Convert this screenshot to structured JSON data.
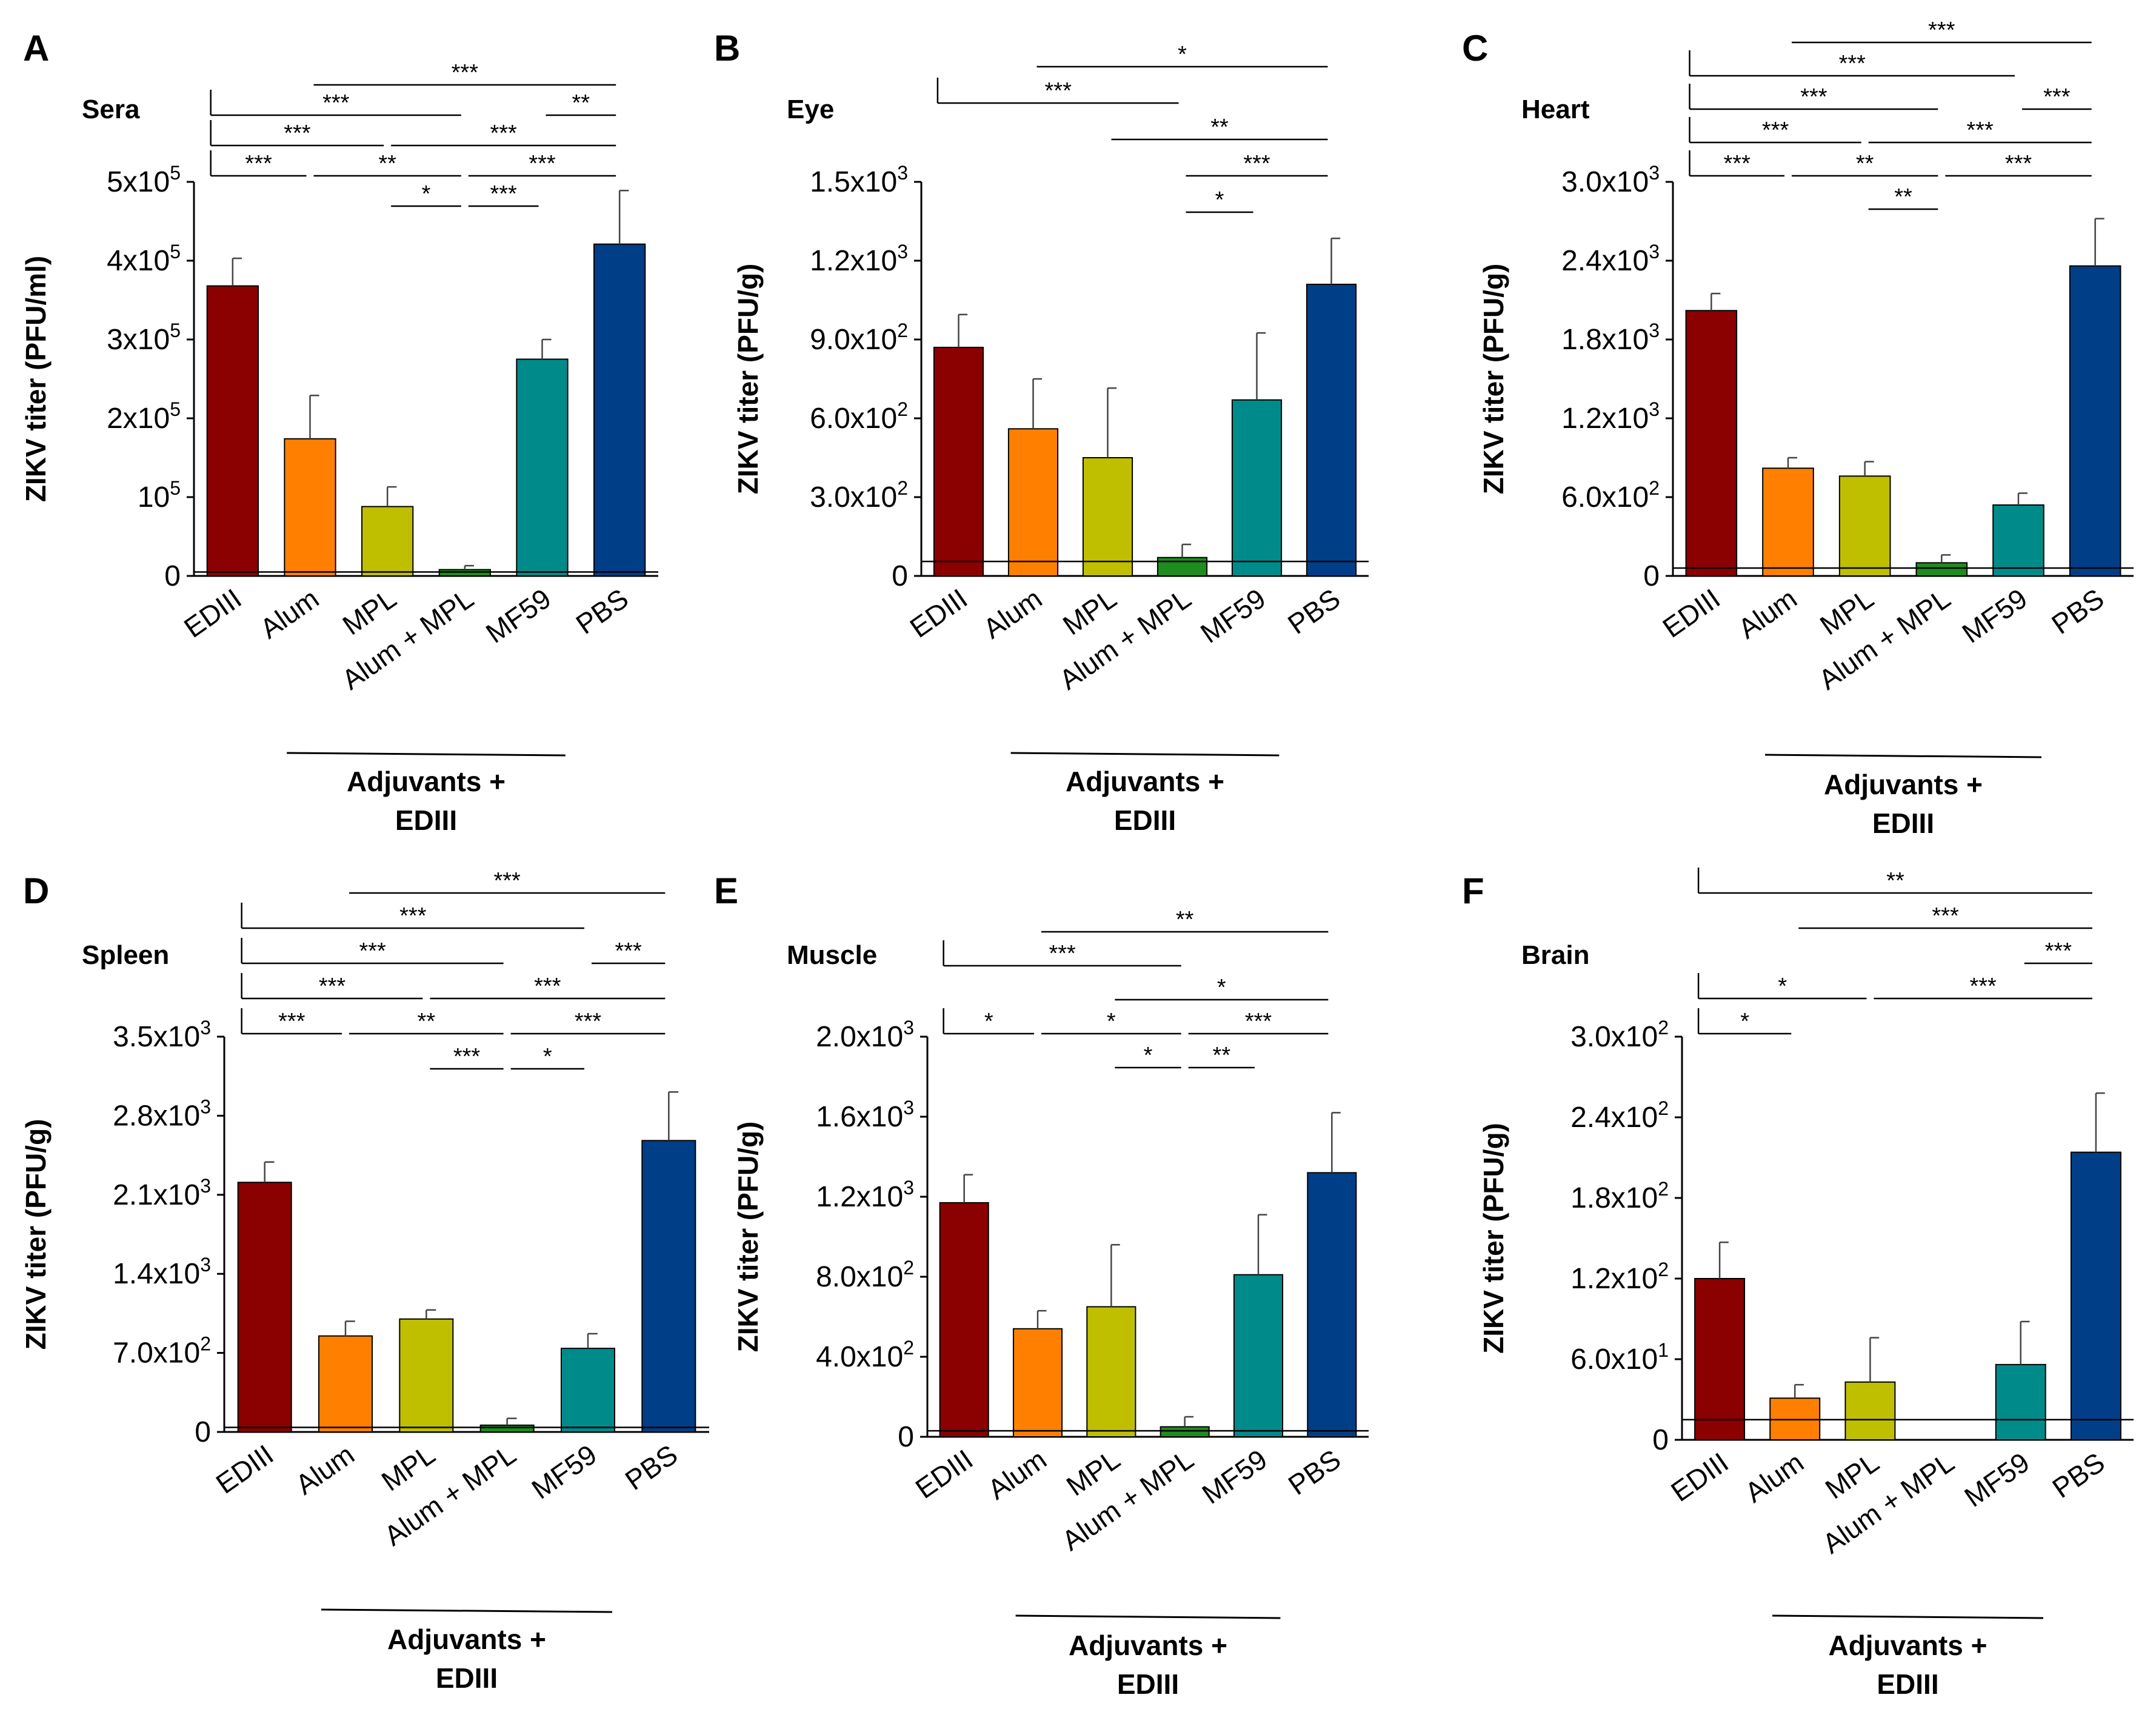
{
  "chart_data": [
    {
      "type": "bar",
      "panel": "A",
      "title": "Sera",
      "ylabel": "ZIKV titer (PFU/ml)",
      "categories": [
        "EDIII",
        "Alum",
        "MPL",
        "Alum + MPL",
        "MF59",
        "PBS"
      ],
      "values": [
        368000,
        174000,
        88000,
        8000,
        275000,
        421000
      ],
      "errors": [
        35000,
        55000,
        25000,
        5000,
        25000,
        68000
      ],
      "colors": [
        "#8B0000",
        "#FF8000",
        "#BFBF00",
        "#1E8C1E",
        "#008B8B",
        "#003F87"
      ],
      "yticks": [
        0,
        100000,
        200000,
        300000,
        400000,
        500000
      ],
      "ytick_labels": [
        {
          "m": "0"
        },
        {
          "m": "10",
          "e": "5"
        },
        {
          "m": "2x10",
          "e": "5"
        },
        {
          "m": "3x10",
          "e": "5"
        },
        {
          "m": "4x10",
          "e": "5"
        },
        {
          "m": "5x10",
          "e": "5"
        }
      ],
      "ylim": [
        0,
        500000
      ],
      "detection_limit": 5000,
      "xlabel_group": [
        "Adjuvants +",
        "EDIII"
      ],
      "group_categories": [
        1,
        4
      ],
      "significance": [
        {
          "from": 0,
          "to": 1,
          "level": 0,
          "label": "***"
        },
        {
          "from": 1,
          "to": 3,
          "level": 0,
          "label": "**"
        },
        {
          "from": 3,
          "to": 5,
          "level": 0,
          "label": "***"
        },
        {
          "from": 0,
          "to": 2,
          "level": 1,
          "label": "***"
        },
        {
          "from": 2,
          "to": 5,
          "level": 1,
          "label": "***"
        },
        {
          "from": 0,
          "to": 3,
          "level": 2,
          "label": "***"
        },
        {
          "from": 4,
          "to": 5,
          "level": 2,
          "label": "**"
        },
        {
          "from": 1,
          "to": 5,
          "level": 3,
          "label": "***"
        },
        {
          "from": 2,
          "to": 3,
          "level": -1,
          "label": "*"
        },
        {
          "from": 3,
          "to": 4,
          "level": -1,
          "label": "***"
        }
      ]
    },
    {
      "type": "bar",
      "panel": "B",
      "title": "Eye",
      "ylabel": "ZIKV titer (PFU/g)",
      "categories": [
        "EDIII",
        "Alum",
        "MPL",
        "Alum + MPL",
        "MF59",
        "PBS"
      ],
      "values": [
        870,
        560,
        450,
        70,
        670,
        1110
      ],
      "errors": [
        125,
        190,
        265,
        50,
        255,
        175
      ],
      "colors": [
        "#8B0000",
        "#FF8000",
        "#BFBF00",
        "#1E8C1E",
        "#008B8B",
        "#003F87"
      ],
      "yticks": [
        0,
        300,
        600,
        900,
        1200,
        1500
      ],
      "ytick_labels": [
        {
          "m": "0"
        },
        {
          "m": "3.0x10",
          "e": "2"
        },
        {
          "m": "6.0x10",
          "e": "2"
        },
        {
          "m": "9.0x10",
          "e": "2"
        },
        {
          "m": "1.2x10",
          "e": "3"
        },
        {
          "m": "1.5x10",
          "e": "3"
        }
      ],
      "ylim": [
        0,
        1500
      ],
      "detection_limit": 55,
      "xlabel_group": [
        "Adjuvants +",
        "EDIII"
      ],
      "group_categories": [
        1,
        4
      ],
      "significance": [
        {
          "from": 3,
          "to": 4,
          "level": -1,
          "label": "*"
        },
        {
          "from": 3,
          "to": 5,
          "level": 0,
          "label": "***"
        },
        {
          "from": 2,
          "to": 5,
          "level": 1,
          "label": "**"
        },
        {
          "from": 0,
          "to": 3,
          "level": 2,
          "label": "***"
        },
        {
          "from": 1,
          "to": 5,
          "level": 3,
          "label": "*"
        }
      ]
    },
    {
      "type": "bar",
      "panel": "C",
      "title": "Heart",
      "ylabel": "ZIKV titer (PFU/g)",
      "categories": [
        "EDIII",
        "Alum",
        "MPL",
        "Alum + MPL",
        "MF59",
        "PBS"
      ],
      "values": [
        2020,
        820,
        760,
        100,
        540,
        2360
      ],
      "errors": [
        130,
        80,
        110,
        60,
        90,
        360
      ],
      "colors": [
        "#8B0000",
        "#FF8000",
        "#BFBF00",
        "#1E8C1E",
        "#008B8B",
        "#003F87"
      ],
      "yticks": [
        0,
        600,
        1200,
        1800,
        2400,
        3000
      ],
      "ytick_labels": [
        {
          "m": "0"
        },
        {
          "m": "6.0x10",
          "e": "2"
        },
        {
          "m": "1.2x10",
          "e": "3"
        },
        {
          "m": "1.8x10",
          "e": "3"
        },
        {
          "m": "2.4x10",
          "e": "3"
        },
        {
          "m": "3.0x10",
          "e": "3"
        }
      ],
      "ylim": [
        0,
        3000
      ],
      "detection_limit": 60,
      "xlabel_group": [
        "Adjuvants +",
        "EDIII"
      ],
      "group_categories": [
        1,
        4
      ],
      "significance": [
        {
          "from": 2,
          "to": 3,
          "level": -1,
          "label": "**"
        },
        {
          "from": 0,
          "to": 1,
          "level": 0,
          "label": "***"
        },
        {
          "from": 1,
          "to": 3,
          "level": 0,
          "label": "**"
        },
        {
          "from": 3,
          "to": 5,
          "level": 0,
          "label": "***"
        },
        {
          "from": 0,
          "to": 2,
          "level": 1,
          "label": "***"
        },
        {
          "from": 2,
          "to": 5,
          "level": 1,
          "label": "***"
        },
        {
          "from": 0,
          "to": 3,
          "level": 2,
          "label": "***"
        },
        {
          "from": 4,
          "to": 5,
          "level": 2,
          "label": "***"
        },
        {
          "from": 0,
          "to": 4,
          "level": 3,
          "label": "***"
        },
        {
          "from": 1,
          "to": 5,
          "level": 4,
          "label": "***"
        }
      ]
    },
    {
      "type": "bar",
      "panel": "D",
      "title": "Spleen",
      "ylabel": "ZIKV titer (PFU/g)",
      "categories": [
        "EDIII",
        "Alum",
        "MPL",
        "Alum + MPL",
        "MF59",
        "PBS"
      ],
      "values": [
        2210,
        850,
        1000,
        60,
        740,
        2580
      ],
      "errors": [
        180,
        130,
        80,
        60,
        130,
        430
      ],
      "colors": [
        "#8B0000",
        "#FF8000",
        "#BFBF00",
        "#1E8C1E",
        "#008B8B",
        "#003F87"
      ],
      "yticks": [
        0,
        700,
        1400,
        2100,
        2800,
        3500
      ],
      "ytick_labels": [
        {
          "m": "0"
        },
        {
          "m": "7.0x10",
          "e": "2"
        },
        {
          "m": "1.4x10",
          "e": "3"
        },
        {
          "m": "2.1x10",
          "e": "3"
        },
        {
          "m": "2.8x10",
          "e": "3"
        },
        {
          "m": "3.5x10",
          "e": "3"
        }
      ],
      "ylim": [
        0,
        3500
      ],
      "detection_limit": 40,
      "xlabel_group": [
        "Adjuvants +",
        "EDIII"
      ],
      "group_categories": [
        1,
        4
      ],
      "significance": [
        {
          "from": 2,
          "to": 3,
          "level": -1,
          "label": "***"
        },
        {
          "from": 3,
          "to": 4,
          "level": -1,
          "label": "*"
        },
        {
          "from": 0,
          "to": 1,
          "level": 0,
          "label": "***"
        },
        {
          "from": 1,
          "to": 3,
          "level": 0,
          "label": "**"
        },
        {
          "from": 3,
          "to": 5,
          "level": 0,
          "label": "***"
        },
        {
          "from": 0,
          "to": 2,
          "level": 1,
          "label": "***"
        },
        {
          "from": 2,
          "to": 5,
          "level": 1,
          "label": "***"
        },
        {
          "from": 0,
          "to": 3,
          "level": 2,
          "label": "***"
        },
        {
          "from": 4,
          "to": 5,
          "level": 2,
          "label": "***"
        },
        {
          "from": 0,
          "to": 4,
          "level": 3,
          "label": "***"
        },
        {
          "from": 1,
          "to": 5,
          "level": 4,
          "label": "***"
        }
      ]
    },
    {
      "type": "bar",
      "panel": "E",
      "title": "Muscle",
      "ylabel": "ZIKV titer (PFU/g)",
      "categories": [
        "EDIII",
        "Alum",
        "MPL",
        "Alum + MPL",
        "MF59",
        "PBS"
      ],
      "values": [
        1170,
        540,
        650,
        50,
        810,
        1320
      ],
      "errors": [
        140,
        90,
        310,
        50,
        300,
        300
      ],
      "colors": [
        "#8B0000",
        "#FF8000",
        "#BFBF00",
        "#1E8C1E",
        "#008B8B",
        "#003F87"
      ],
      "yticks": [
        0,
        400,
        800,
        1200,
        1600,
        2000
      ],
      "ytick_labels": [
        {
          "m": "0"
        },
        {
          "m": "4.0x10",
          "e": "2"
        },
        {
          "m": "8.0x10",
          "e": "2"
        },
        {
          "m": "1.2x10",
          "e": "3"
        },
        {
          "m": "1.6x10",
          "e": "3"
        },
        {
          "m": "2.0x10",
          "e": "3"
        }
      ],
      "ylim": [
        0,
        2000
      ],
      "detection_limit": 30,
      "xlabel_group": [
        "Adjuvants +",
        "EDIII"
      ],
      "group_categories": [
        1,
        4
      ],
      "significance": [
        {
          "from": 2,
          "to": 3,
          "level": -1,
          "label": "*"
        },
        {
          "from": 3,
          "to": 4,
          "level": -1,
          "label": "**"
        },
        {
          "from": 0,
          "to": 1,
          "level": 0,
          "label": "*"
        },
        {
          "from": 1,
          "to": 3,
          "level": 0,
          "label": "*"
        },
        {
          "from": 3,
          "to": 5,
          "level": 0,
          "label": "***"
        },
        {
          "from": 2,
          "to": 5,
          "level": 1,
          "label": "*"
        },
        {
          "from": 0,
          "to": 3,
          "level": 2,
          "label": "***"
        },
        {
          "from": 1,
          "to": 5,
          "level": 3,
          "label": "**"
        }
      ]
    },
    {
      "type": "bar",
      "panel": "F",
      "title": "Brain",
      "ylabel": "ZIKV titer (PFU/g)",
      "categories": [
        "EDIII",
        "Alum",
        "MPL",
        "Alum + MPL",
        "MF59",
        "PBS"
      ],
      "values": [
        120,
        31,
        43,
        0,
        56,
        214
      ],
      "errors": [
        27,
        10,
        33,
        0,
        32,
        44
      ],
      "colors": [
        "#8B0000",
        "#FF8000",
        "#BFBF00",
        "#1E8C1E",
        "#008B8B",
        "#003F87"
      ],
      "yticks": [
        0,
        60,
        120,
        180,
        240,
        300
      ],
      "ytick_labels": [
        {
          "m": "0"
        },
        {
          "m": "6.0x10",
          "e": "1"
        },
        {
          "m": "1.2x10",
          "e": "2"
        },
        {
          "m": "1.8x10",
          "e": "2"
        },
        {
          "m": "2.4x10",
          "e": "2"
        },
        {
          "m": "3.0x10",
          "e": "2"
        }
      ],
      "ylim": [
        0,
        300
      ],
      "detection_limit": 15,
      "xlabel_group": [
        "Adjuvants +",
        "EDIII"
      ],
      "group_categories": [
        1,
        4
      ],
      "significance": [
        {
          "from": 0,
          "to": 1,
          "level": 0,
          "label": "*"
        },
        {
          "from": 0,
          "to": 2,
          "level": 1,
          "label": "*"
        },
        {
          "from": 2,
          "to": 5,
          "level": 1,
          "label": "***"
        },
        {
          "from": 4,
          "to": 5,
          "level": 2,
          "label": "***"
        },
        {
          "from": 1,
          "to": 5,
          "level": 3,
          "label": "***"
        },
        {
          "from": 0,
          "to": 5,
          "level": 4,
          "label": "**"
        }
      ]
    }
  ]
}
